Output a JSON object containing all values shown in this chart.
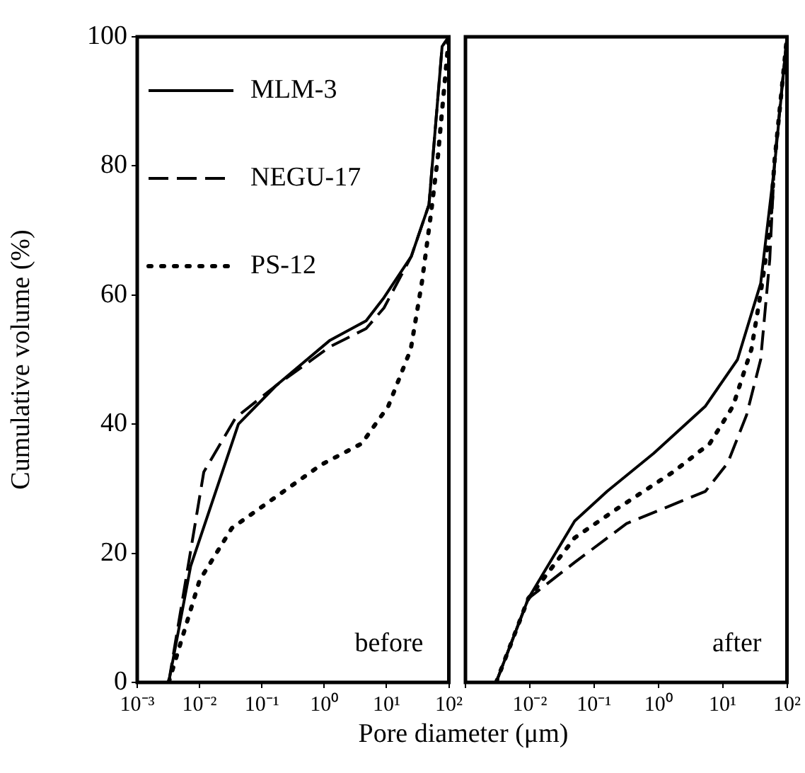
{
  "chart_data": [
    {
      "type": "line",
      "ylabel": "Cumulative volume (%)",
      "xlabel": "Pore diameter (μm)",
      "annotations": [
        "before"
      ],
      "log": "x",
      "xlim": [
        0.001,
        100
      ],
      "xticks": [
        {
          "value": 0.001,
          "label": "10⁻³"
        },
        {
          "value": 0.01,
          "label": "10⁻²"
        },
        {
          "value": 0.1,
          "label": "10⁻¹"
        },
        {
          "value": 1,
          "label": "10⁰"
        },
        {
          "value": 10,
          "label": "10¹"
        },
        {
          "value": 100,
          "label": "10²"
        }
      ],
      "ylim": [
        0,
        100
      ],
      "yticks": [
        0,
        20,
        40,
        60,
        80,
        100
      ],
      "grid": false,
      "legend": "top left",
      "series": [
        {
          "name": "MLM-3",
          "color": "#000000",
          "line_style": "solid",
          "x": [
            0.0032,
            0.0072,
            0.042,
            0.17,
            1.24,
            4.7,
            9.1,
            25,
            48,
            78,
            100
          ],
          "values": [
            0,
            18,
            40,
            46,
            53,
            56,
            59.6,
            66,
            74,
            98.5,
            100
          ]
        },
        {
          "name": "NEGU-17",
          "color": "#000000",
          "line_style": "dashed",
          "x": [
            0.0032,
            0.0117,
            0.038,
            0.17,
            1.24,
            4.7,
            9.1,
            25,
            48,
            78,
            100
          ],
          "values": [
            0,
            32.6,
            41,
            46,
            52,
            54.8,
            58,
            66,
            74,
            98.5,
            100
          ]
        },
        {
          "name": "PS-12",
          "color": "#000000",
          "line_style": "dotted",
          "x": [
            0.0032,
            0.01,
            0.033,
            0.145,
            0.89,
            4,
            10.7,
            24.5,
            37,
            52,
            67,
            100
          ],
          "values": [
            0,
            15.8,
            23.9,
            28.3,
            33.7,
            37,
            42.8,
            51.6,
            62,
            72.8,
            81.6,
            100
          ]
        }
      ]
    },
    {
      "type": "line",
      "annotations": [
        "after"
      ],
      "log": "x",
      "tick_labels": "x",
      "xlim": [
        0.001,
        100
      ],
      "xticks": [
        {
          "value": 0.001,
          "label": null
        },
        {
          "value": 0.01,
          "label": "10⁻²"
        },
        {
          "value": 0.1,
          "label": "10⁻¹"
        },
        {
          "value": 1,
          "label": "10⁰"
        },
        {
          "value": 10,
          "label": "10¹"
        },
        {
          "value": 100,
          "label": "10²"
        }
      ],
      "ylim": [
        0,
        100
      ],
      "yticks": [
        0,
        20,
        40,
        60,
        80,
        100
      ],
      "grid": false,
      "legend": false,
      "series": [
        {
          "color": "#000000",
          "line_style": "solid",
          "x": [
            0.003,
            0.0095,
            0.05,
            0.16,
            0.85,
            5.4,
            17,
            39,
            64,
            100
          ],
          "values": [
            0,
            13,
            25,
            29.6,
            35.5,
            42.8,
            50,
            61.8,
            80,
            100
          ]
        },
        {
          "color": "#000000",
          "line_style": "dashed",
          "x": [
            0.003,
            0.0095,
            0.05,
            0.32,
            5.4,
            12,
            23.5,
            39,
            54,
            64,
            100
          ],
          "values": [
            0,
            13,
            18.6,
            24.6,
            29.6,
            34,
            41.4,
            50,
            65.5,
            80.7,
            100
          ]
        },
        {
          "color": "#000000",
          "line_style": "dotted",
          "x": [
            0.003,
            0.0095,
            0.05,
            0.22,
            1.7,
            6.3,
            14.5,
            28,
            39,
            54,
            64,
            100
          ],
          "values": [
            0,
            13,
            22.4,
            26.8,
            32.6,
            37,
            42.8,
            51.6,
            60.3,
            70,
            80.7,
            100
          ]
        }
      ]
    }
  ]
}
